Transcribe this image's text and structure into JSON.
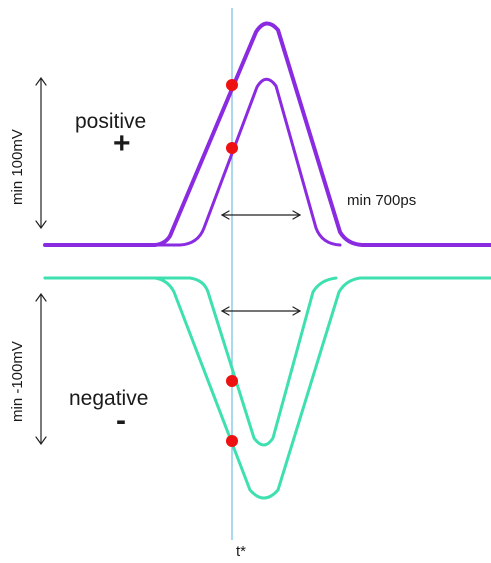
{
  "labels": {
    "positive": "positive",
    "positive_sign": "+",
    "negative": "negative",
    "negative_sign": "-",
    "min_pos_amplitude": "min 100mV",
    "min_neg_amplitude": "min -100mV",
    "min_width": "min 700ps",
    "time_marker": "t*"
  },
  "colors": {
    "positive_pulse": "#8a2be2",
    "negative_pulse": "#3ee0b0",
    "marker_dot": "#ee1111",
    "time_line": "#7cc4e6",
    "arrow": "#222222"
  }
}
